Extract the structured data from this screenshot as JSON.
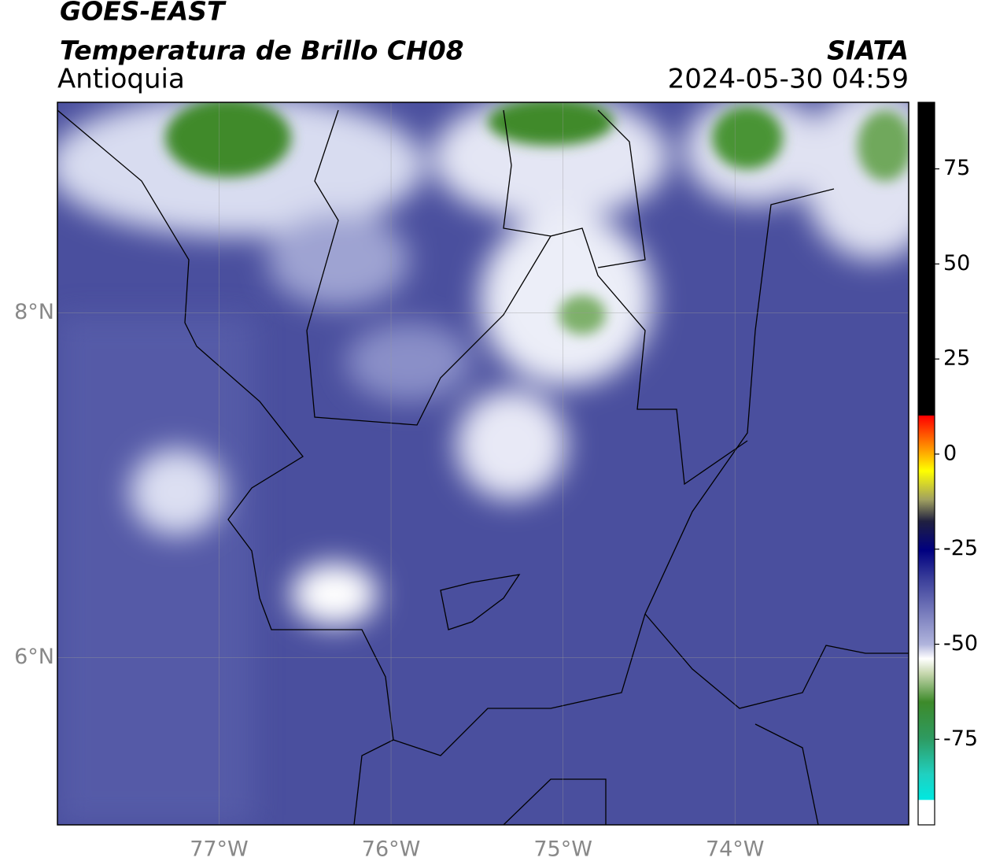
{
  "header": {
    "satellite": "GOES-EAST",
    "product": "Temperatura de Brillo CH08",
    "region": "Antioquia",
    "source": "SIATA",
    "datetime": "2024-05-30 04:59"
  },
  "map": {
    "xlim": [
      -77.94,
      -72.99
    ],
    "ylim": [
      5.03,
      9.22
    ],
    "xticks": [
      {
        "value": -77,
        "label": "77°W"
      },
      {
        "value": -76,
        "label": "76°W"
      },
      {
        "value": -75,
        "label": "75°W"
      },
      {
        "value": -74,
        "label": "74°W"
      }
    ],
    "yticks": [
      {
        "value": 8,
        "label": "8°N"
      },
      {
        "value": 6,
        "label": "6°N"
      }
    ],
    "grid": true
  },
  "colorbar": {
    "lim": [
      -97.5,
      92.5
    ],
    "ticks": [
      75,
      50,
      25,
      0,
      -25,
      -50,
      -75
    ]
  }
}
